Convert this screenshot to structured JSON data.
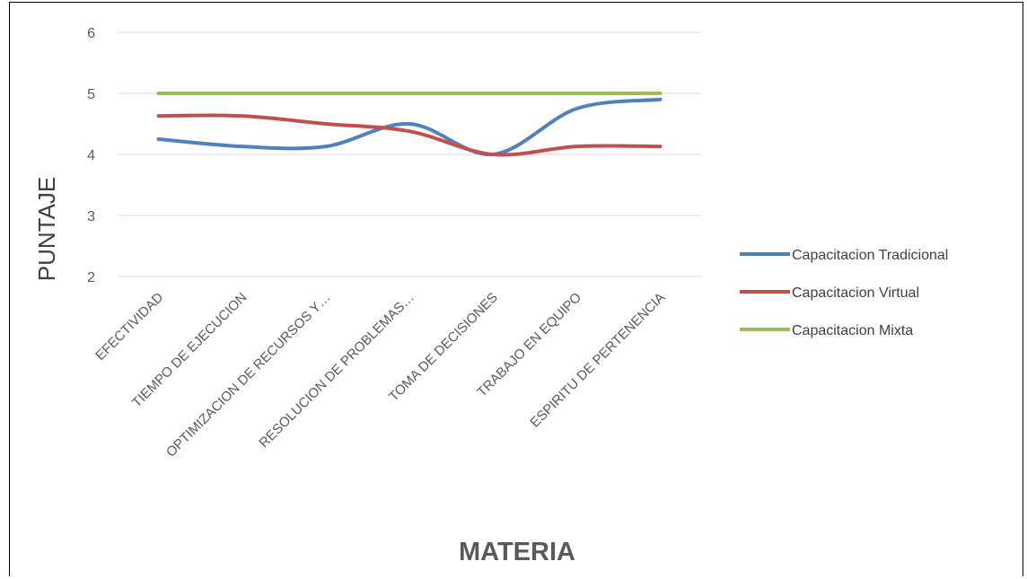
{
  "chart_data": {
    "type": "line",
    "smooth": true,
    "title": "",
    "xlabel": "MATERIA",
    "ylabel": "PUNTAJE",
    "ylim": [
      2,
      6
    ],
    "yticks": [
      "2",
      "3",
      "4",
      "5",
      "6"
    ],
    "grid": true,
    "legend": "right",
    "categories": [
      "EFECTIVIDAD",
      "TIEMPO DE EJECUCION",
      "OPTIMIZACION DE RECURSOS Y…",
      "RESOLUCION DE PROBLEMAS…",
      "TOMA DE DECISIONES",
      "TRABAJO EN EQUIPO",
      "ESPIRITU DE PERTENENCIA"
    ],
    "series": [
      {
        "name": "Capacitacion Tradicional",
        "color": "#4f81bd",
        "values": [
          4.25,
          4.13,
          4.13,
          4.5,
          4.0,
          4.75,
          4.9
        ]
      },
      {
        "name": "Capacitacion Virtual",
        "color": "#c0504d",
        "values": [
          4.63,
          4.63,
          4.5,
          4.38,
          4.0,
          4.13,
          4.13
        ]
      },
      {
        "name": "Capacitacion Mixta",
        "color": "#9bbb59",
        "values": [
          5,
          5,
          5,
          5,
          5,
          5,
          5
        ]
      }
    ]
  }
}
